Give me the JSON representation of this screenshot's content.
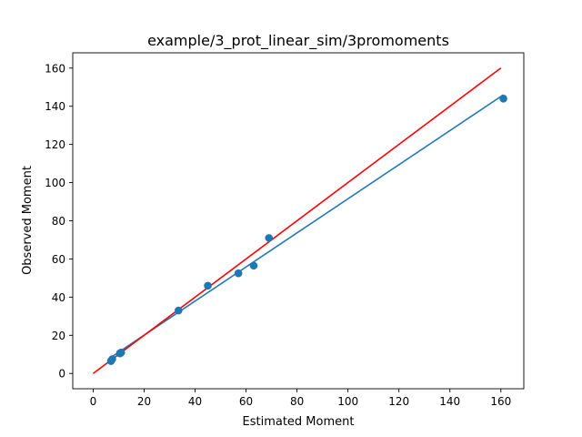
{
  "chart_data": {
    "type": "scatter",
    "title": "example/3_prot_linear_sim/3promoments",
    "xlabel": "Estimated Moment",
    "ylabel": "Observed Moment",
    "xlim": [
      -8,
      169
    ],
    "ylim": [
      -8,
      168
    ],
    "xticks": [
      0,
      20,
      40,
      60,
      80,
      100,
      120,
      140,
      160
    ],
    "yticks": [
      0,
      20,
      40,
      60,
      80,
      100,
      120,
      140,
      160
    ],
    "grid": false,
    "legend": "none",
    "colors": {
      "points": "#1f77b4",
      "fit_line": "#1f77b4",
      "identity_line": "#ff0000"
    },
    "series": [
      {
        "kind": "scatter",
        "x": [
          7,
          7.5,
          10.5,
          11,
          33.5,
          45,
          57,
          63,
          69,
          161
        ],
        "y": [
          6.5,
          7.5,
          10.5,
          11,
          33,
          46,
          52.5,
          56.5,
          71,
          144
        ]
      },
      {
        "kind": "line",
        "x": [
          6.5,
          161
        ],
        "y": [
          8,
          146
        ]
      },
      {
        "kind": "line",
        "x": [
          0,
          160
        ],
        "y": [
          0,
          160
        ]
      }
    ]
  }
}
